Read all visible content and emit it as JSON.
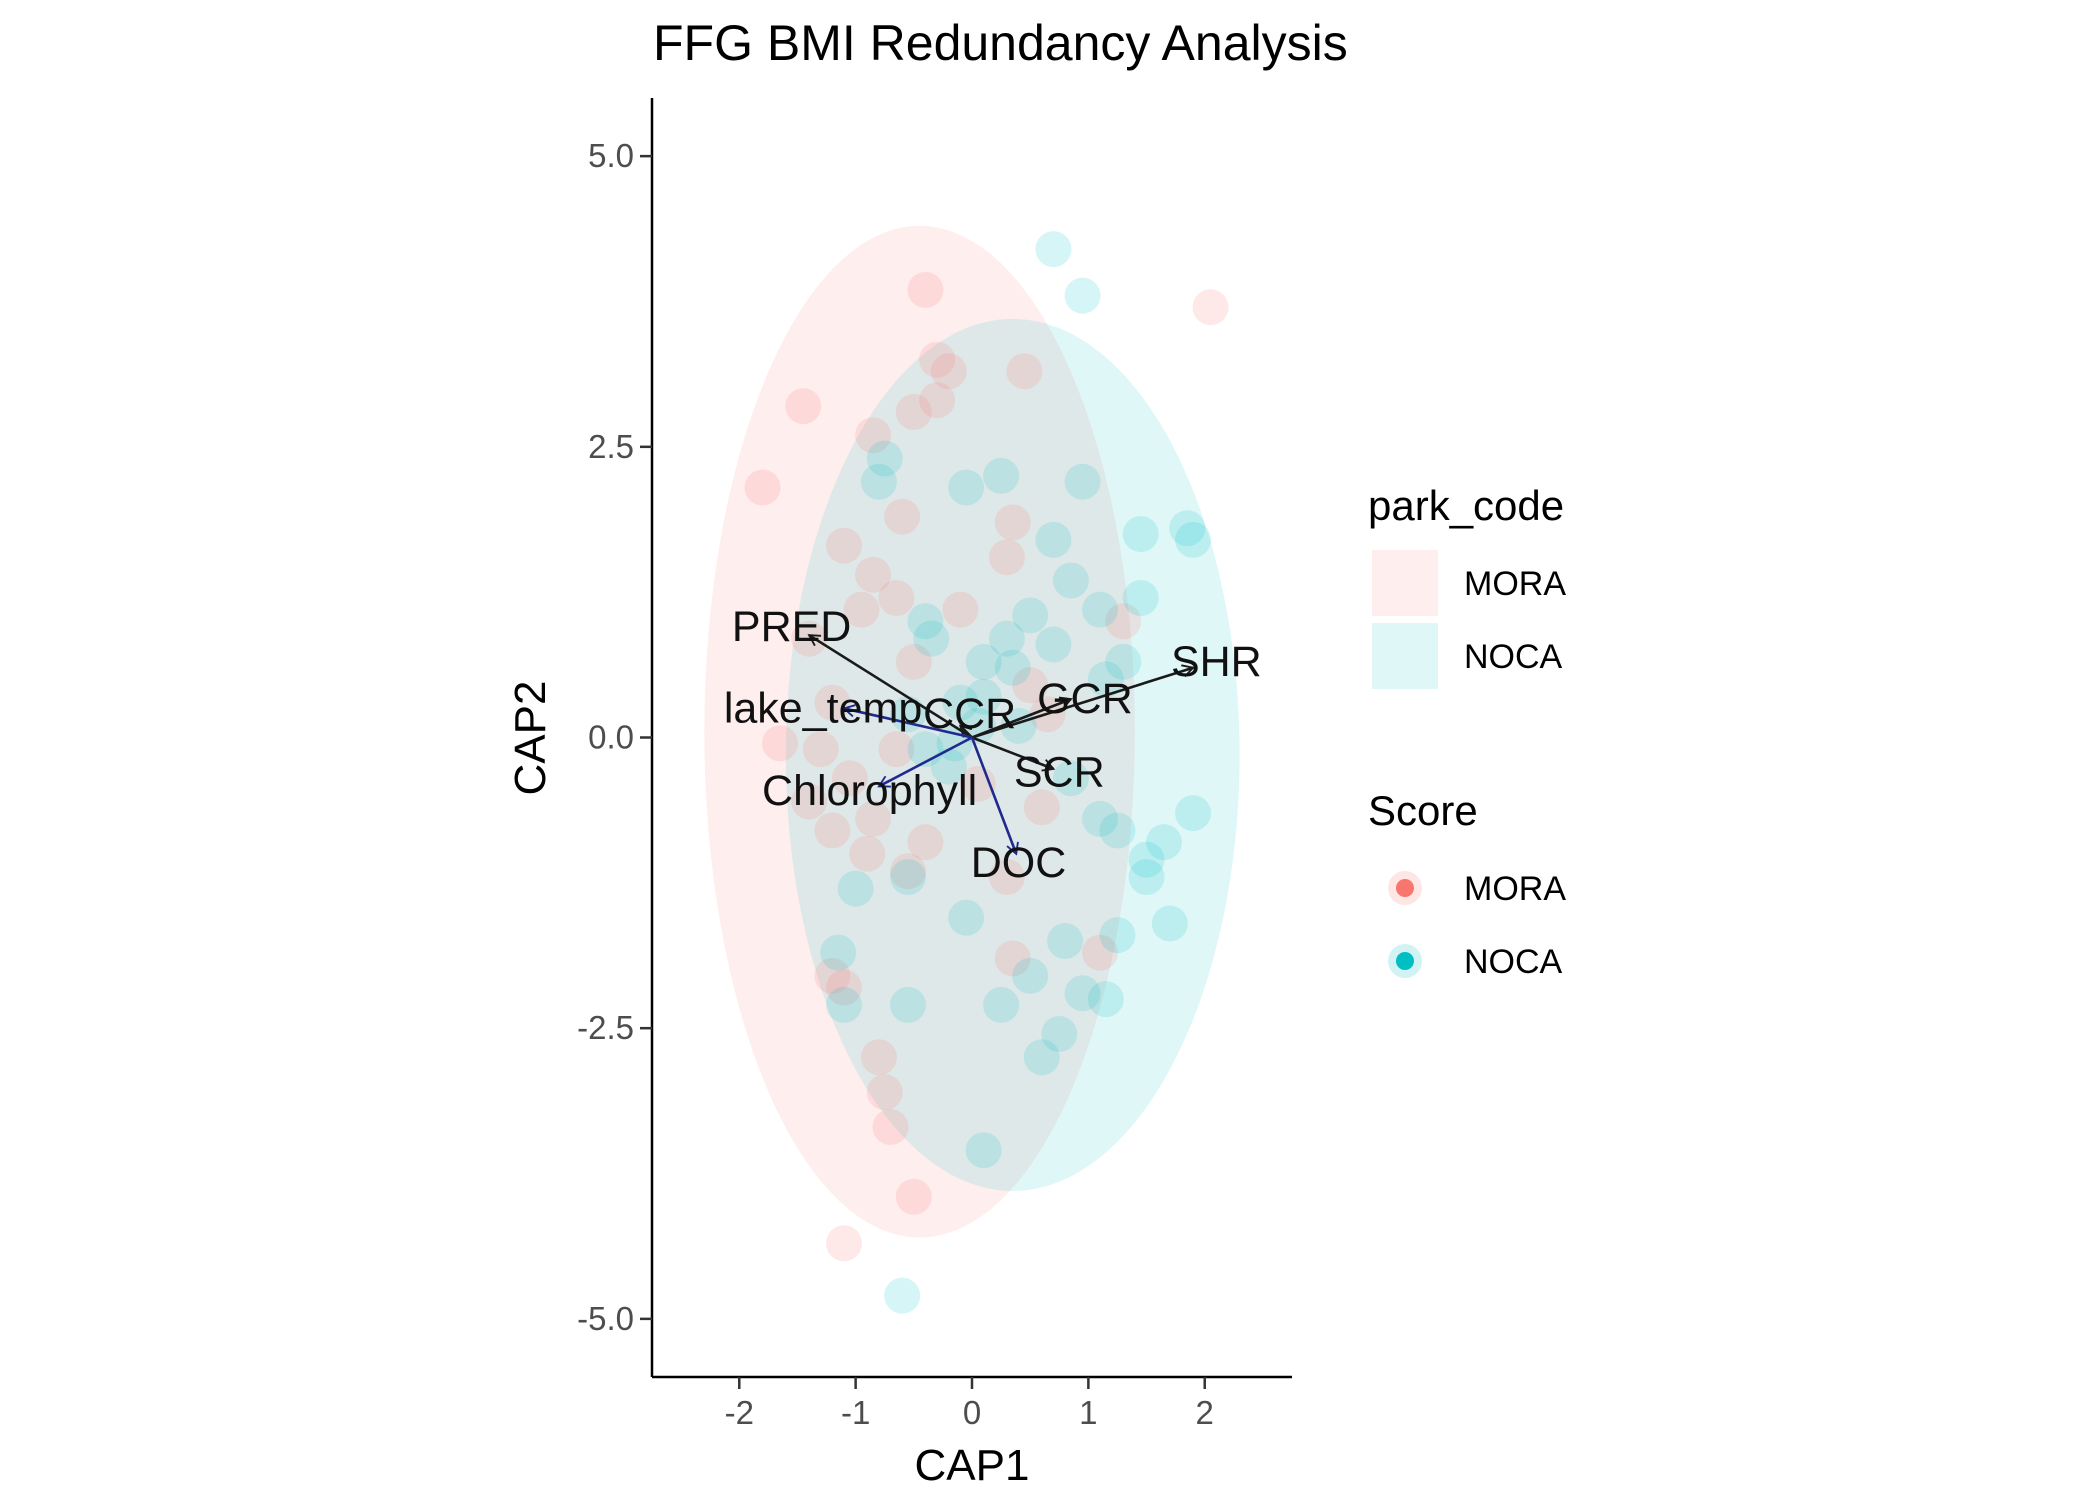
{
  "chart_data": {
    "type": "scatter",
    "title": "FFG BMI Redundancy Analysis",
    "xlabel": "CAP1",
    "ylabel": "CAP2",
    "xlim": [
      -2.75,
      2.75
    ],
    "ylim": [
      -5.5,
      5.5
    ],
    "xticks": [
      -2,
      -1,
      0,
      1,
      2
    ],
    "xtick_labels": [
      "-2",
      "-1",
      "0",
      "1",
      "2"
    ],
    "yticks": [
      -5,
      -2.5,
      0,
      2.5,
      5
    ],
    "ytick_labels": [
      "-5.0",
      "-2.5",
      "0.0",
      "2.5",
      "5.0"
    ],
    "grid": false,
    "legend_position": "right",
    "colors": {
      "MORA": "#F8766D",
      "NOCA": "#00BFC4",
      "arrow_blue": "#1f2a8c",
      "arrow_black": "#1a1a1a"
    },
    "legends": [
      {
        "title": "park_code",
        "kind": "fill",
        "entries": [
          {
            "label": "MORA",
            "color": "#F8766D"
          },
          {
            "label": "NOCA",
            "color": "#00BFC4"
          }
        ]
      },
      {
        "title": "Score",
        "kind": "point",
        "entries": [
          {
            "label": "MORA",
            "color": "#F8766D"
          },
          {
            "label": "NOCA",
            "color": "#00BFC4"
          }
        ]
      }
    ],
    "ellipses": [
      {
        "group": "MORA",
        "cx": -0.45,
        "cy": 0.05,
        "rx": 1.85,
        "ry": 4.35
      },
      {
        "group": "NOCA",
        "cx": 0.35,
        "cy": -0.15,
        "rx": 1.95,
        "ry": 3.75
      }
    ],
    "series": [
      {
        "name": "MORA",
        "points": [
          [
            -0.4,
            3.85
          ],
          [
            2.05,
            3.7
          ],
          [
            -0.3,
            3.25
          ],
          [
            -0.2,
            3.15
          ],
          [
            0.45,
            3.15
          ],
          [
            -1.45,
            2.85
          ],
          [
            -0.5,
            2.8
          ],
          [
            -0.3,
            2.9
          ],
          [
            -0.85,
            2.6
          ],
          [
            -1.8,
            2.15
          ],
          [
            -0.6,
            1.9
          ],
          [
            0.35,
            1.85
          ],
          [
            -1.1,
            1.65
          ],
          [
            -0.85,
            1.4
          ],
          [
            -0.65,
            1.2
          ],
          [
            0.3,
            1.55
          ],
          [
            -0.95,
            1.1
          ],
          [
            -0.1,
            1.1
          ],
          [
            1.3,
            1.0
          ],
          [
            -1.4,
            0.85
          ],
          [
            -0.5,
            0.65
          ],
          [
            0.5,
            0.45
          ],
          [
            -1.2,
            0.3
          ],
          [
            -1.65,
            -0.05
          ],
          [
            -1.3,
            -0.1
          ],
          [
            -0.65,
            -0.1
          ],
          [
            -1.05,
            -0.35
          ],
          [
            -1.4,
            -0.55
          ],
          [
            -0.85,
            -0.7
          ],
          [
            -1.2,
            -0.8
          ],
          [
            -0.9,
            -1.0
          ],
          [
            0.6,
            -0.6
          ],
          [
            -0.55,
            -1.15
          ],
          [
            0.35,
            -1.9
          ],
          [
            1.1,
            -1.85
          ],
          [
            -1.2,
            -2.05
          ],
          [
            -1.1,
            -2.15
          ],
          [
            -0.8,
            -2.75
          ],
          [
            -0.75,
            -3.05
          ],
          [
            -0.7,
            -3.35
          ],
          [
            -0.5,
            -3.95
          ],
          [
            -1.1,
            -4.35
          ],
          [
            0.05,
            -0.4
          ],
          [
            0.65,
            0.2
          ],
          [
            -0.4,
            -0.9
          ],
          [
            0.3,
            -1.2
          ]
        ]
      },
      {
        "name": "NOCA",
        "points": [
          [
            0.7,
            4.2
          ],
          [
            0.95,
            3.8
          ],
          [
            -0.75,
            2.4
          ],
          [
            -0.8,
            2.2
          ],
          [
            -0.05,
            2.15
          ],
          [
            0.25,
            2.25
          ],
          [
            0.95,
            2.2
          ],
          [
            0.7,
            1.7
          ],
          [
            1.45,
            1.75
          ],
          [
            1.85,
            1.8
          ],
          [
            1.9,
            1.7
          ],
          [
            0.85,
            1.35
          ],
          [
            1.1,
            1.1
          ],
          [
            1.45,
            1.2
          ],
          [
            -0.4,
            1.0
          ],
          [
            -0.35,
            0.85
          ],
          [
            0.5,
            1.05
          ],
          [
            0.3,
            0.85
          ],
          [
            0.7,
            0.8
          ],
          [
            0.1,
            0.65
          ],
          [
            0.35,
            0.6
          ],
          [
            1.15,
            0.5
          ],
          [
            1.3,
            0.65
          ],
          [
            -0.55,
            0.2
          ],
          [
            -0.1,
            0.3
          ],
          [
            0.1,
            0.35
          ],
          [
            0.4,
            0.1
          ],
          [
            -0.4,
            -0.1
          ],
          [
            -0.2,
            -0.25
          ],
          [
            0.85,
            -0.35
          ],
          [
            1.1,
            -0.7
          ],
          [
            1.25,
            -0.8
          ],
          [
            1.65,
            -0.9
          ],
          [
            1.9,
            -0.65
          ],
          [
            1.5,
            -1.05
          ],
          [
            1.5,
            -1.2
          ],
          [
            -1.0,
            -1.3
          ],
          [
            -0.55,
            -1.2
          ],
          [
            -0.05,
            -1.55
          ],
          [
            0.8,
            -1.75
          ],
          [
            1.25,
            -1.7
          ],
          [
            1.7,
            -1.6
          ],
          [
            -1.15,
            -1.85
          ],
          [
            -1.1,
            -2.3
          ],
          [
            -0.55,
            -2.3
          ],
          [
            0.25,
            -2.3
          ],
          [
            0.5,
            -2.05
          ],
          [
            0.95,
            -2.2
          ],
          [
            1.15,
            -2.25
          ],
          [
            0.75,
            -2.55
          ],
          [
            0.6,
            -2.75
          ],
          [
            0.1,
            -3.55
          ],
          [
            -0.6,
            -4.8
          ],
          [
            0.05,
            0.1
          ],
          [
            -0.15,
            -0.05
          ]
        ]
      }
    ],
    "arrows": [
      {
        "label": "PRED",
        "x": -1.4,
        "y": 0.88,
        "color": "#1a1a1a",
        "label_x": -1.55,
        "label_y": 0.95
      },
      {
        "label": "SHR",
        "x": 1.9,
        "y": 0.6,
        "color": "#1a1a1a",
        "label_x": 2.1,
        "label_y": 0.65
      },
      {
        "label": "GCR",
        "x": 0.85,
        "y": 0.33,
        "color": "#1a1a1a",
        "label_x": 0.97,
        "label_y": 0.33
      },
      {
        "label": "SCR",
        "x": 0.7,
        "y": -0.27,
        "color": "#1a1a1a",
        "label_x": 0.75,
        "label_y": -0.3
      },
      {
        "label": "CCR",
        "x": -0.1,
        "y": 0.1,
        "color": "#1a1a1a",
        "label_x": -0.02,
        "label_y": 0.2
      },
      {
        "label": "lake_temp",
        "x": -1.1,
        "y": 0.25,
        "color": "#1f2a8c",
        "label_x": -1.28,
        "label_y": 0.25
      },
      {
        "label": "Chlorophyll",
        "x": -0.8,
        "y": -0.42,
        "color": "#1f2a8c",
        "label_x": -0.88,
        "label_y": -0.46
      },
      {
        "label": "DOC",
        "x": 0.38,
        "y": -1.0,
        "color": "#1f2a8c",
        "label_x": 0.4,
        "label_y": -1.08
      }
    ]
  }
}
